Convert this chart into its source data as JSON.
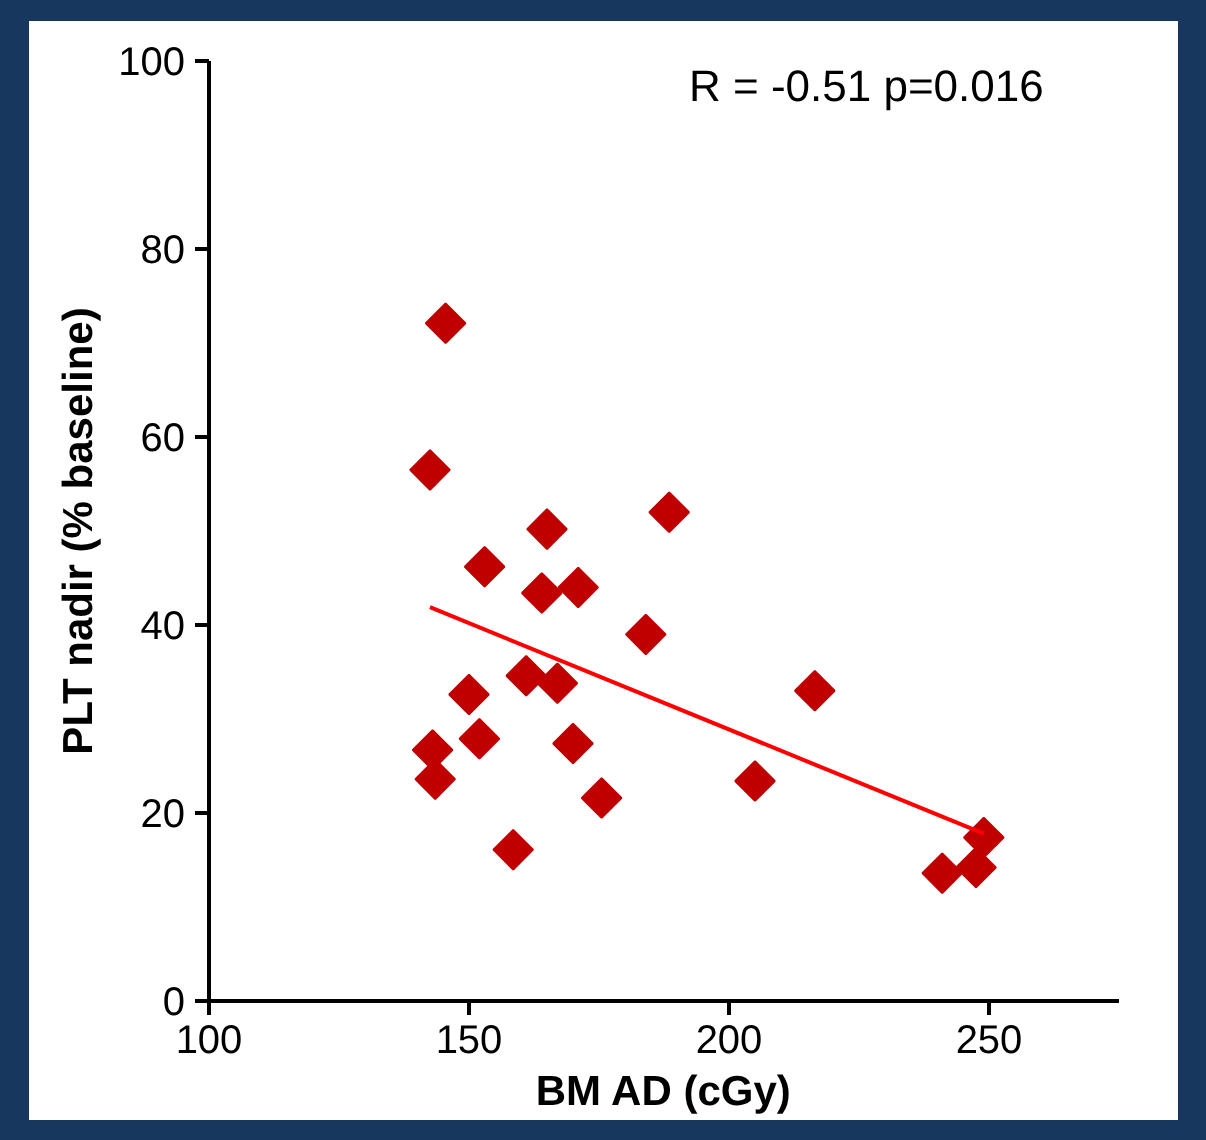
{
  "chart_data": {
    "type": "scatter",
    "xlabel": "BM AD (cGy)",
    "ylabel": "PLT nadir (% baseline)",
    "xlim": [
      100,
      275
    ],
    "xticks": [
      100,
      150,
      200,
      250
    ],
    "ylim": [
      0,
      100
    ],
    "yticks": [
      0,
      20,
      40,
      60,
      80,
      100
    ],
    "grid": false,
    "marker": "diamond",
    "annotations": [
      "R = -0.51 p=0.016"
    ],
    "series": [
      {
        "color": "#c00000",
        "x": [
          145.5,
          142.5,
          165,
          153,
          164,
          171,
          161,
          167,
          150,
          152,
          143,
          143.5,
          170,
          175.5,
          158.5,
          184,
          216.5,
          205,
          249,
          247.5,
          241,
          188.5
        ],
        "values": [
          72.1,
          56.5,
          50.2,
          46.2,
          43.4,
          44.0,
          34.6,
          33.8,
          32.6,
          27.9,
          26.7,
          23.6,
          27.4,
          21.6,
          16.1,
          39.0,
          33.0,
          23.4,
          17.4,
          14.2,
          13.6,
          52.0
        ]
      },
      {
        "type": "line",
        "marker": "none",
        "color": "#ff0000",
        "x": [
          142.5,
          249
        ],
        "values": [
          41.9,
          17.8
        ]
      }
    ]
  }
}
